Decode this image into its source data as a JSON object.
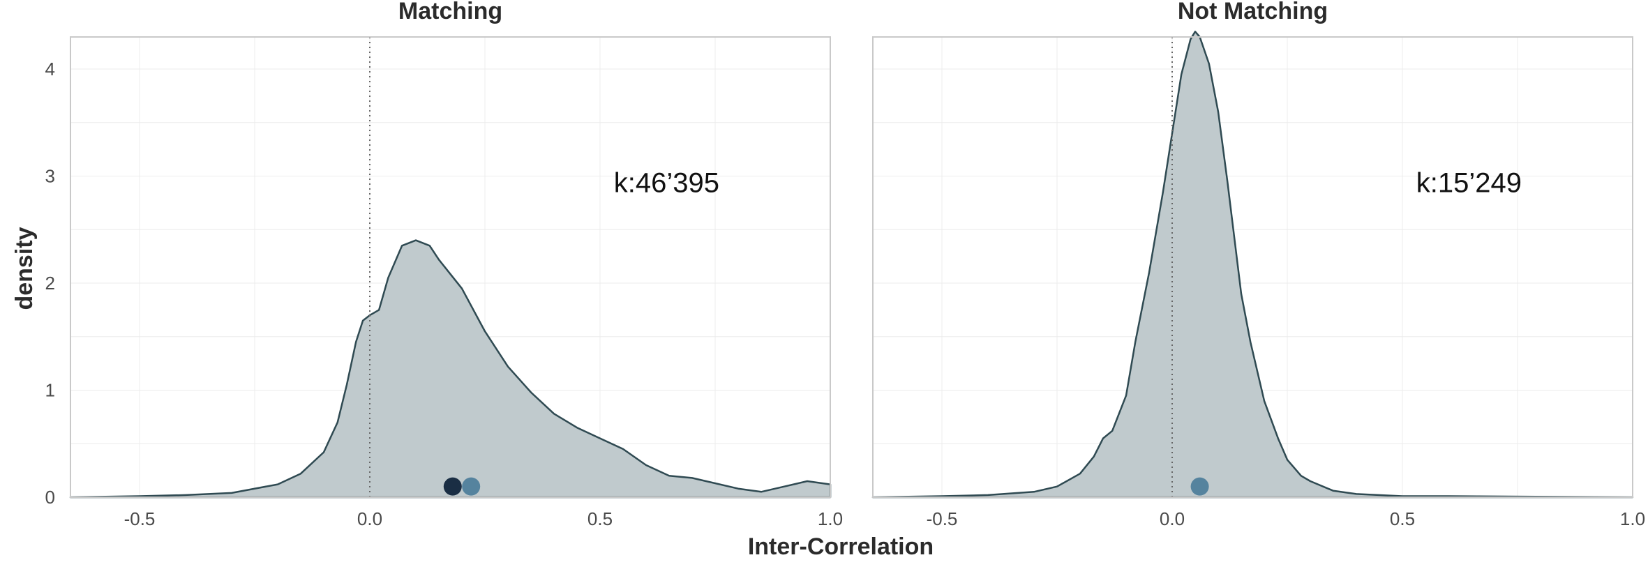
{
  "chart_data": [
    {
      "type": "area",
      "title": "Matching",
      "annotation": "k:46’395",
      "xlim": [
        -0.65,
        1.0
      ],
      "ylim": [
        0,
        4.3
      ],
      "x_ticks": [
        -0.5,
        0.0,
        0.5,
        1.0
      ],
      "x_tick_labels": [
        "-0.5",
        "0.0",
        "0.5",
        "1.0"
      ],
      "y_ticks": [
        0,
        1,
        2,
        3,
        4
      ],
      "y_tick_labels": [
        "0",
        "1",
        "2",
        "3",
        "4"
      ],
      "reference_line_x": 0.0,
      "density": {
        "x": [
          -0.65,
          -0.5,
          -0.4,
          -0.3,
          -0.2,
          -0.15,
          -0.1,
          -0.07,
          -0.05,
          -0.03,
          -0.015,
          0.0,
          0.02,
          0.04,
          0.07,
          0.1,
          0.13,
          0.15,
          0.2,
          0.25,
          0.3,
          0.35,
          0.4,
          0.45,
          0.5,
          0.55,
          0.6,
          0.65,
          0.7,
          0.8,
          0.85,
          0.9,
          0.95,
          1.0
        ],
        "y": [
          0.0,
          0.01,
          0.02,
          0.04,
          0.12,
          0.22,
          0.42,
          0.7,
          1.05,
          1.45,
          1.65,
          1.7,
          1.75,
          2.05,
          2.35,
          2.4,
          2.35,
          2.22,
          1.95,
          1.55,
          1.22,
          0.98,
          0.78,
          0.65,
          0.55,
          0.45,
          0.3,
          0.2,
          0.18,
          0.08,
          0.05,
          0.1,
          0.15,
          0.12
        ]
      },
      "points": [
        {
          "x": 0.18,
          "y": 0.1,
          "color": "#1a2e44"
        },
        {
          "x": 0.22,
          "y": 0.1,
          "color": "#55839e"
        }
      ]
    },
    {
      "type": "area",
      "title": "Not Matching",
      "annotation": "k:15’249",
      "xlim": [
        -0.65,
        1.0
      ],
      "ylim": [
        0,
        4.3
      ],
      "x_ticks": [
        -0.5,
        0.0,
        0.5,
        1.0
      ],
      "x_tick_labels": [
        "-0.5",
        "0.0",
        "0.5",
        "1.0"
      ],
      "y_ticks": [
        0,
        1,
        2,
        3,
        4
      ],
      "reference_line_x": 0.0,
      "density": {
        "x": [
          -0.65,
          -0.5,
          -0.4,
          -0.3,
          -0.25,
          -0.2,
          -0.17,
          -0.15,
          -0.13,
          -0.1,
          -0.08,
          -0.05,
          -0.02,
          0.0,
          0.02,
          0.04,
          0.05,
          0.06,
          0.08,
          0.1,
          0.12,
          0.15,
          0.17,
          0.2,
          0.23,
          0.25,
          0.28,
          0.3,
          0.35,
          0.4,
          0.5,
          0.6,
          1.0
        ],
        "y": [
          0.0,
          0.01,
          0.02,
          0.05,
          0.1,
          0.22,
          0.38,
          0.55,
          0.62,
          0.95,
          1.45,
          2.1,
          2.85,
          3.4,
          3.95,
          4.28,
          4.35,
          4.3,
          4.05,
          3.6,
          2.95,
          1.9,
          1.45,
          0.9,
          0.55,
          0.35,
          0.2,
          0.15,
          0.06,
          0.03,
          0.01,
          0.01,
          0.0
        ]
      },
      "points": [
        {
          "x": 0.06,
          "y": 0.1,
          "color": "#55839e"
        }
      ]
    }
  ],
  "ylabel": "density",
  "xlabel": "Inter-Correlation",
  "colors": {
    "fill": "#c0cacd",
    "outline": "#2f4a52",
    "frame": "#c9c9c9"
  }
}
